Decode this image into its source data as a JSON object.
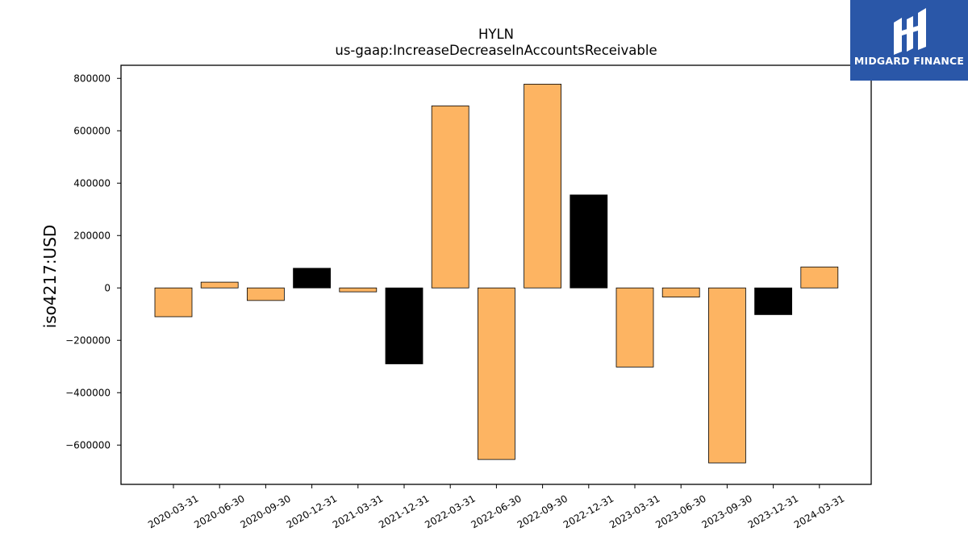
{
  "brand": {
    "name": "MIDGARD FINANCE",
    "background": "#2a57a8"
  },
  "chart_data": {
    "type": "bar",
    "title": "HYLN",
    "subtitle": "us-gaap:IncreaseDecreaseInAccountsReceivable",
    "ylabel": "iso4217:USD",
    "xlabel": "",
    "ylim": [
      -750000,
      850000
    ],
    "yticks": [
      -600000,
      -400000,
      -200000,
      0,
      200000,
      400000,
      600000,
      800000
    ],
    "ytick_labels": [
      "−600000",
      "−400000",
      "−200000",
      "0",
      "200000",
      "400000",
      "600000",
      "800000"
    ],
    "categories": [
      "2020-03-31",
      "2020-06-30",
      "2020-09-30",
      "2020-12-31",
      "2021-03-31",
      "2021-12-31",
      "2022-03-31",
      "2022-06-30",
      "2022-09-30",
      "2022-12-31",
      "2023-03-31",
      "2023-06-30",
      "2023-09-30",
      "2023-12-31",
      "2024-03-31"
    ],
    "values": [
      -110000,
      22000,
      -48000,
      75000,
      -15000,
      -290000,
      695000,
      -655000,
      778000,
      355000,
      -302000,
      -35000,
      -668000,
      -102000,
      80000
    ],
    "bar_colors": [
      "#fdb462",
      "#fdb462",
      "#fdb462",
      "#000000",
      "#fdb462",
      "#000000",
      "#fdb462",
      "#fdb462",
      "#fdb462",
      "#000000",
      "#fdb462",
      "#fdb462",
      "#fdb462",
      "#000000",
      "#fdb462"
    ],
    "grid": false,
    "legend": "none"
  }
}
